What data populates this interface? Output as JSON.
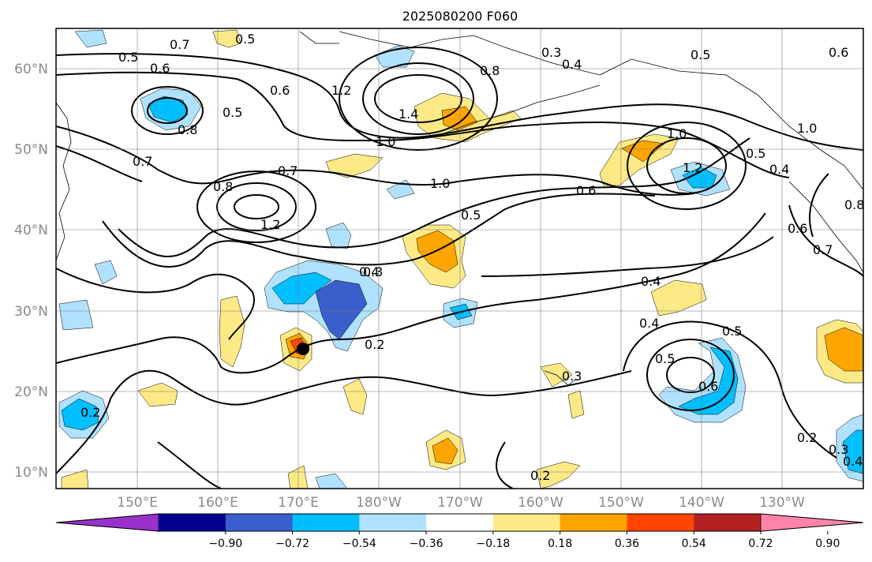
{
  "title": "2025080200 F060",
  "map": {
    "lat_labels": [
      "60°N",
      "50°N",
      "40°N",
      "30°N",
      "20°N",
      "10°N"
    ],
    "lon_labels": [
      "150°E",
      "160°E",
      "170°E",
      "180°W",
      "170°W",
      "160°W",
      "150°W",
      "140°W",
      "130°W"
    ],
    "gridlines": true,
    "contour_labels": [
      "0.7",
      "0.5",
      "0.5",
      "0.6",
      "0.5",
      "0.8",
      "0.6",
      "1.2",
      "1.4",
      "0.3",
      "0.4",
      "0.8",
      "0.5",
      "0.6",
      "1.0",
      "0.7",
      "0.7",
      "0.8",
      "1.2",
      "1.0",
      "1.0",
      "0.6",
      "1.0",
      "1.2",
      "0.5",
      "0.4",
      "0.4",
      "0.8",
      "0.6",
      "0.7",
      "0.5",
      "0.3",
      "0.4",
      "0.4",
      "0.5",
      "0.5",
      "0.6",
      "0.2",
      "0.3",
      "0.2",
      "0.2",
      "0.2",
      "0.3",
      "0.4"
    ]
  },
  "colorbar": {
    "tick_labels": [
      "−0.90",
      "−0.72",
      "−0.54",
      "−0.36",
      "−0.18",
      "0.18",
      "0.36",
      "0.54",
      "0.72",
      "0.90"
    ],
    "colors": [
      "#9932cc",
      "#00008b",
      "#3a5fcd",
      "#00bfff",
      "#b0e2ff",
      "#ffffff",
      "#fdea86",
      "#ffa500",
      "#ff4500",
      "#b22222",
      "#ff85a8"
    ],
    "extend": "both"
  }
}
